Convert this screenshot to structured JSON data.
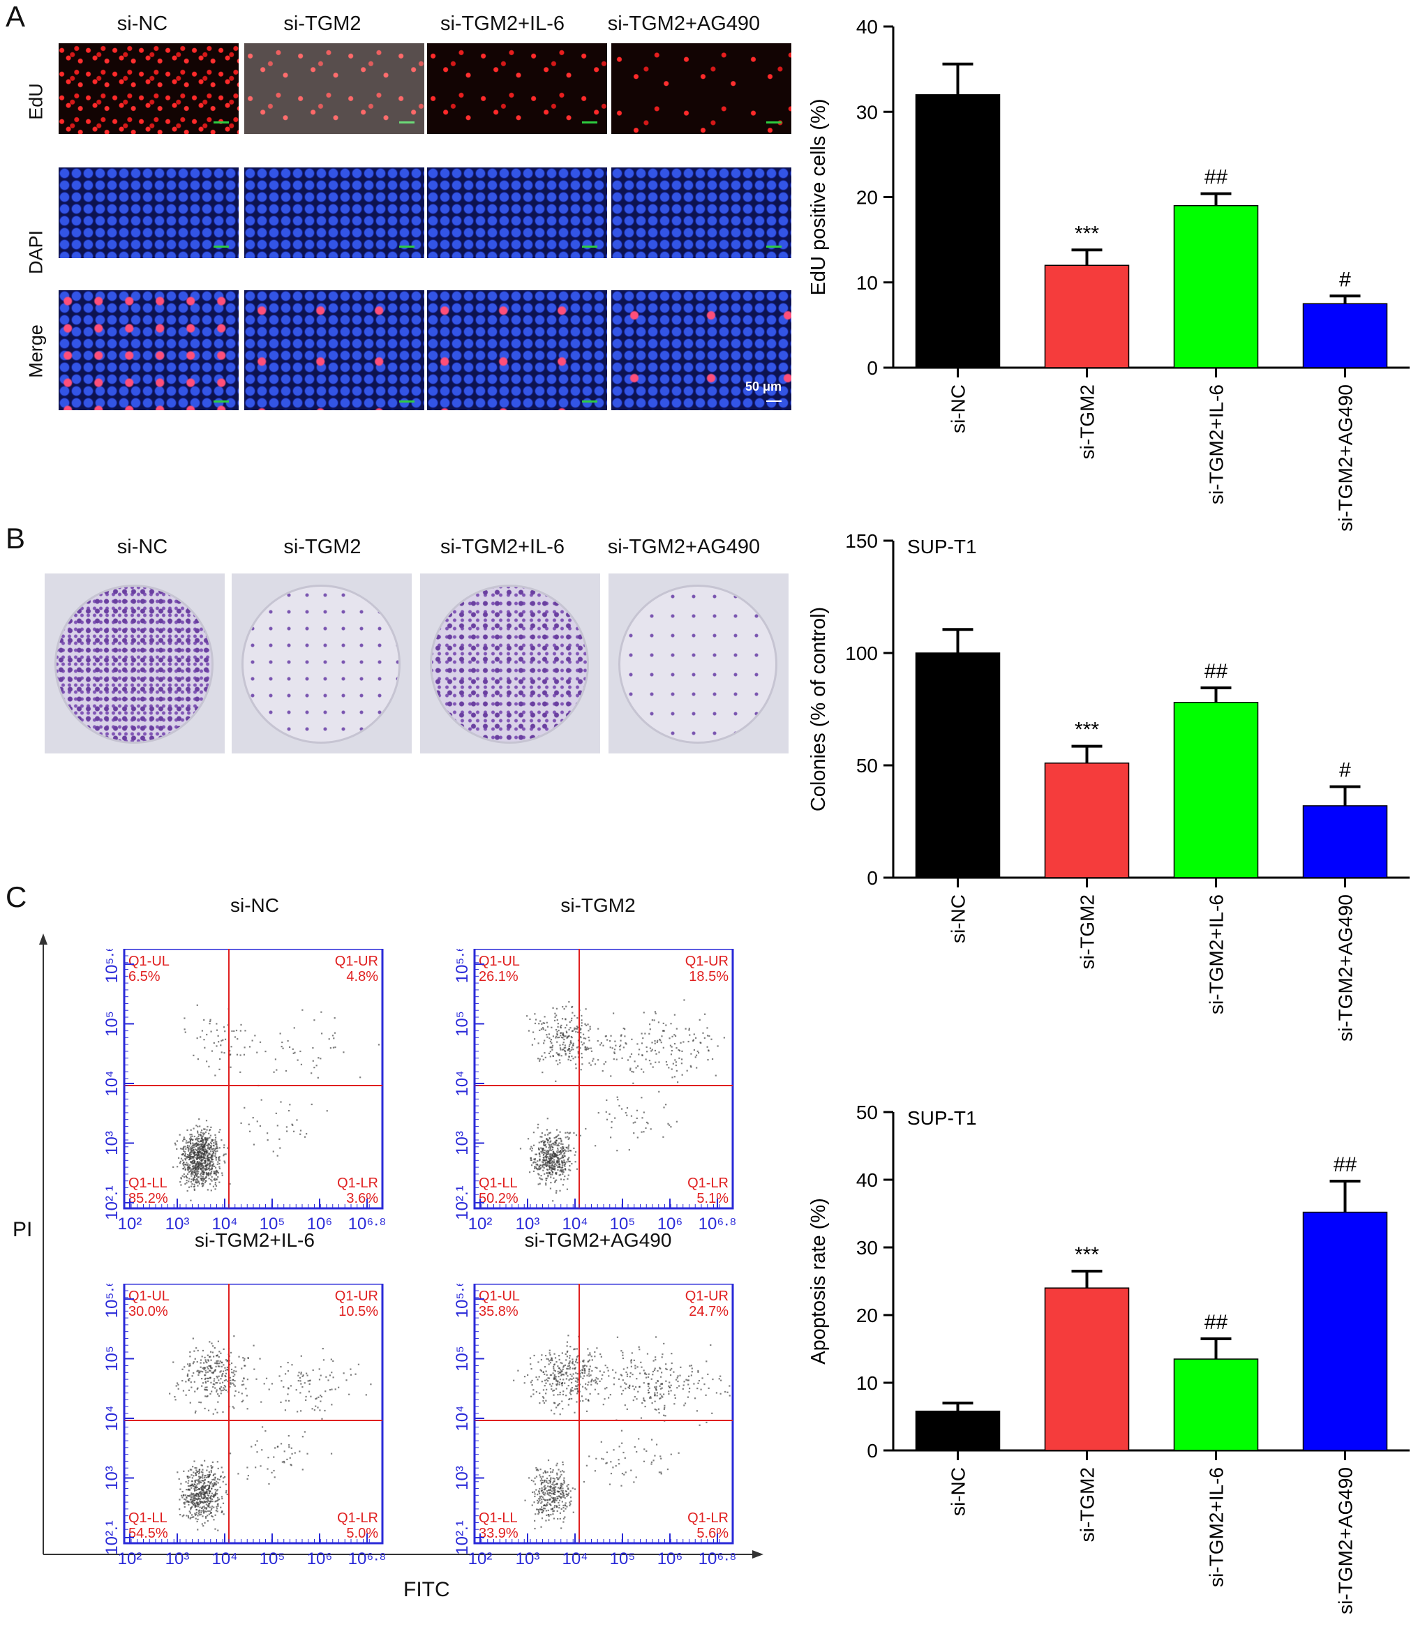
{
  "groups": [
    "si-NC",
    "si-TGM2",
    "si-TGM2+IL-6",
    "si-TGM2+AG490"
  ],
  "bar_colors": [
    "#000000",
    "#f53c3c",
    "#00ff00",
    "#0000ff"
  ],
  "panel_letters": [
    "A",
    "B",
    "C"
  ],
  "panelA": {
    "row_labels": [
      "EdU",
      "DAPI",
      "Merge"
    ],
    "scale_bar_label": "50 μm"
  },
  "panelC": {
    "flow_titles": [
      "si-NC",
      "si-TGM2",
      "si-TGM2+IL-6",
      "si-TGM2+AG490"
    ],
    "flow_ylabel": "PI",
    "flow_xlabel": "FITC",
    "quad_labels": [
      "Q1-UL",
      "Q1-UR",
      "Q1-LL",
      "Q1-LR"
    ],
    "x_ticks": [
      "10²",
      "10³",
      "10⁴",
      "10⁵",
      "10⁶",
      "10⁶·⁸"
    ],
    "y_ticks": [
      "10².¹",
      "10³",
      "10⁴",
      "10⁵",
      "10⁵·⁶"
    ],
    "quadrants": [
      {
        "UL": "6.5%",
        "UR": "4.8%",
        "LL": "85.2%",
        "LR": "3.6%"
      },
      {
        "UL": "26.1%",
        "UR": "18.5%",
        "LL": "50.2%",
        "LR": "5.1%"
      },
      {
        "UL": "30.0%",
        "UR": "10.5%",
        "LL": "54.5%",
        "LR": "5.0%"
      },
      {
        "UL": "35.8%",
        "UR": "24.7%",
        "LL": "33.9%",
        "LR": "5.6%"
      }
    ]
  },
  "chart_data": [
    {
      "type": "bar",
      "title": "",
      "categories": [
        "si-NC",
        "si-TGM2",
        "si-TGM2+IL-6",
        "si-TGM2+AG490"
      ],
      "values": [
        32,
        12,
        19,
        7.5
      ],
      "errors": [
        3.6,
        1.8,
        1.4,
        0.9
      ],
      "annotations": [
        "",
        "***",
        "##",
        "#"
      ],
      "ylabel": "EdU positive cells (%)",
      "xlabel": "",
      "ylim": [
        0,
        40
      ],
      "yticks": [
        0,
        10,
        20,
        30,
        40
      ],
      "grid": false
    },
    {
      "type": "bar",
      "title": "SUP-T1",
      "categories": [
        "si-NC",
        "si-TGM2",
        "si-TGM2+IL-6",
        "si-TGM2+AG490"
      ],
      "values": [
        100,
        51,
        78,
        32
      ],
      "errors": [
        10.5,
        7.5,
        6.5,
        8.5
      ],
      "annotations": [
        "",
        "***",
        "##",
        "#"
      ],
      "ylabel": "Colonies (% of control)",
      "xlabel": "",
      "ylim": [
        0,
        150
      ],
      "yticks": [
        0,
        50,
        100,
        150
      ],
      "grid": false
    },
    {
      "type": "bar",
      "title": "SUP-T1",
      "categories": [
        "si-NC",
        "si-TGM2",
        "si-TGM2+IL-6",
        "si-TGM2+AG490"
      ],
      "values": [
        5.8,
        24,
        13.5,
        35.2
      ],
      "errors": [
        1.2,
        2.5,
        3.0,
        4.6
      ],
      "annotations": [
        "",
        "***",
        "##",
        "##"
      ],
      "ylabel": "Apoptosis rate (%)",
      "xlabel": "",
      "ylim": [
        0,
        50
      ],
      "yticks": [
        0,
        10,
        20,
        30,
        40,
        50
      ],
      "grid": false
    }
  ]
}
